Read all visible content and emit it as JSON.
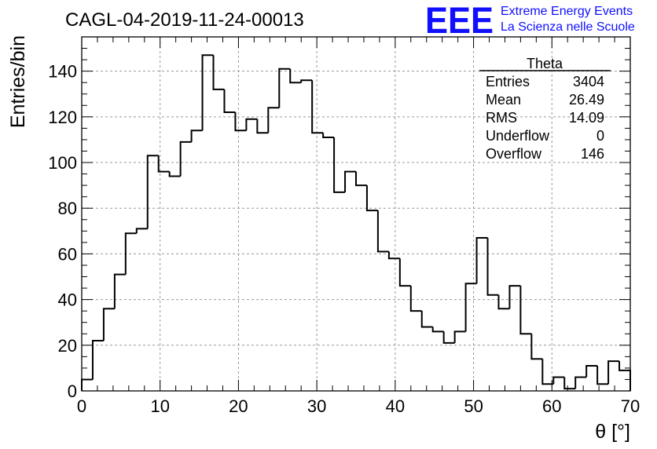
{
  "header": {
    "run_title": "CAGL-04-2019-11-24-00013",
    "logo_text": "EEE",
    "logo_line1": "Extreme Energy Events",
    "logo_line2": "La Scienza nelle Scuole",
    "logo_color": "#1010ff"
  },
  "stats": {
    "title": "Theta",
    "rows": [
      {
        "label": "Entries",
        "value": "3404"
      },
      {
        "label": "Mean",
        "value": "26.49"
      },
      {
        "label": "RMS",
        "value": "14.09"
      },
      {
        "label": "Underflow",
        "value": "0"
      },
      {
        "label": "Overflow",
        "value": "146"
      }
    ]
  },
  "chart_data": {
    "type": "histogram",
    "xlabel": "θ [°]",
    "ylabel": "Entries/bin",
    "xlim": [
      0,
      70
    ],
    "ylim": [
      0,
      155
    ],
    "grid": true,
    "line_color": "#000000",
    "bin_width": 1.4,
    "x_ticks": [
      0,
      10,
      20,
      30,
      40,
      50,
      60,
      70
    ],
    "y_ticks": [
      0,
      20,
      40,
      60,
      80,
      100,
      120,
      140
    ],
    "x_tick_labels": [
      "0",
      "10",
      "20",
      "30",
      "40",
      "50",
      "60",
      "70"
    ],
    "y_tick_labels": [
      "0",
      "20",
      "40",
      "60",
      "80",
      "100",
      "120",
      "140"
    ],
    "bin_edges": [
      0,
      1.4,
      2.8,
      4.2,
      5.6,
      7.0,
      8.4,
      9.8,
      11.2,
      12.6,
      14.0,
      15.4,
      16.8,
      18.2,
      19.6,
      21.0,
      22.4,
      23.8,
      25.2,
      26.6,
      28.0,
      29.4,
      30.8,
      32.2,
      33.6,
      35.0,
      36.4,
      37.8,
      39.2,
      40.6,
      42.0,
      43.4,
      44.8,
      46.2,
      47.6,
      49.0,
      50.4,
      51.8,
      53.2,
      54.6,
      56.0,
      57.4,
      58.8,
      60.2,
      61.6,
      63.0,
      64.4,
      65.8,
      67.2,
      68.6,
      70.0
    ],
    "values": [
      5,
      22,
      36,
      51,
      69,
      71,
      103,
      96,
      94,
      109,
      114,
      147,
      132,
      122,
      114,
      119,
      113,
      124,
      141,
      135,
      136,
      113,
      111,
      87,
      96,
      90,
      79,
      61,
      58,
      46,
      35,
      28,
      26,
      21,
      26,
      47,
      67,
      42,
      36,
      46,
      25,
      14,
      3,
      6,
      1,
      6,
      11,
      3,
      13,
      9
    ]
  }
}
